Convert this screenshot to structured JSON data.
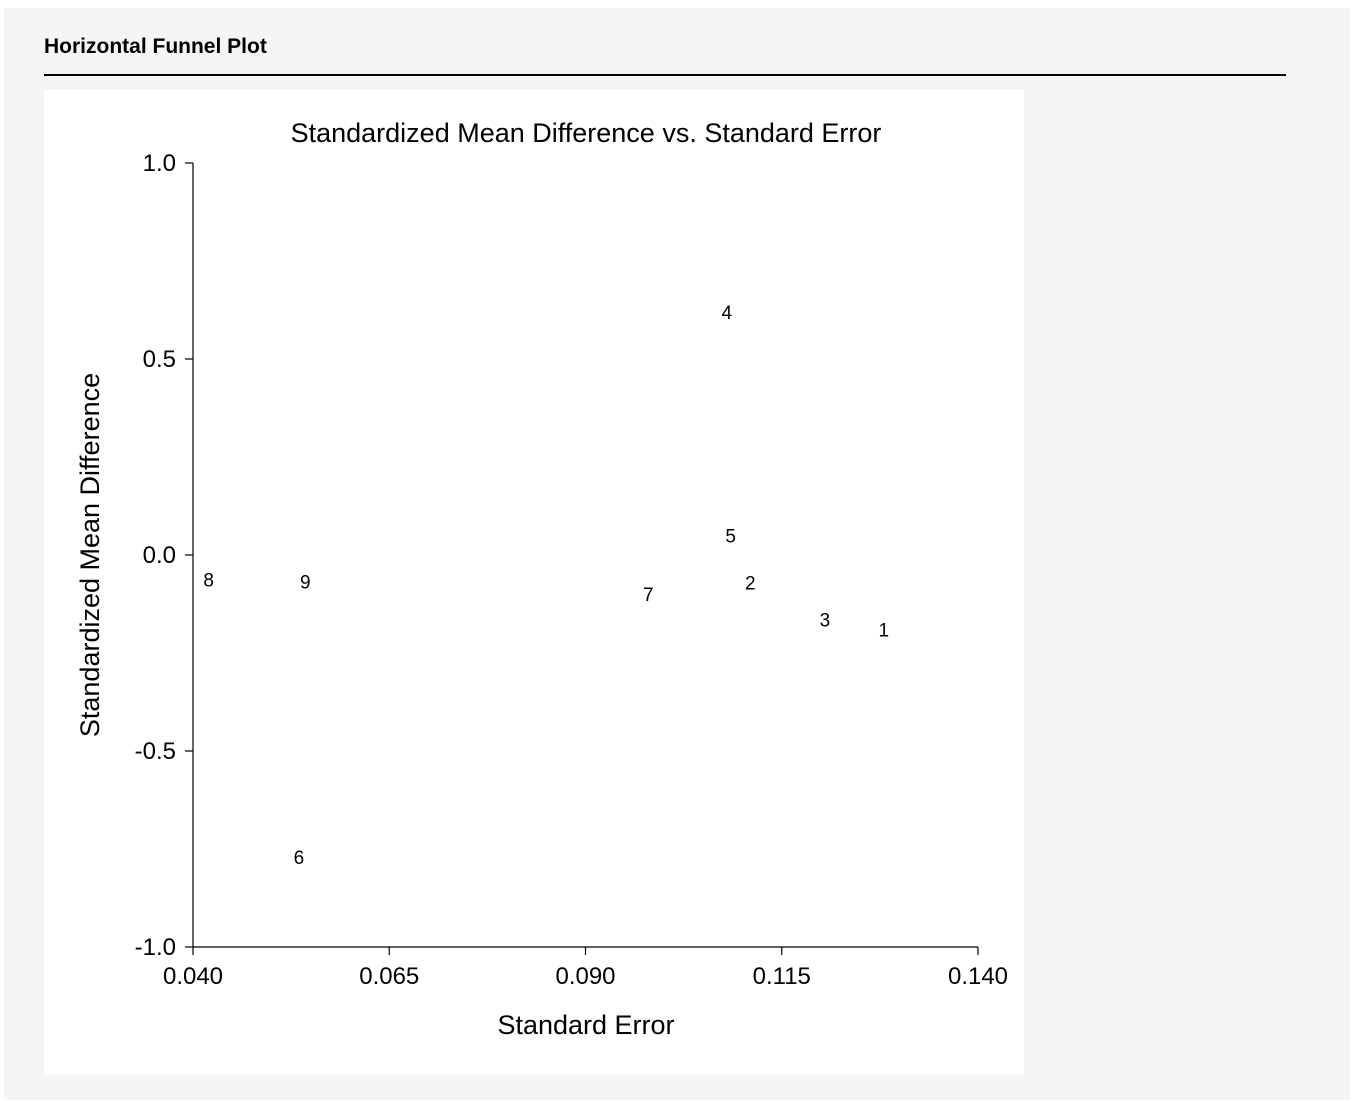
{
  "header": {
    "title": "Horizontal Funnel Plot"
  },
  "chart_data": {
    "type": "scatter",
    "title": "Standardized Mean Difference vs. Standard Error",
    "xlabel": "Standard Error",
    "ylabel": "Standardized Mean Difference",
    "xlim": [
      0.04,
      0.14
    ],
    "ylim": [
      -1.0,
      1.0
    ],
    "xticks": [
      "0.040",
      "0.065",
      "0.090",
      "0.115",
      "0.140"
    ],
    "yticks": [
      "1.0",
      "0.5",
      "0.0",
      "-0.5",
      "-1.0"
    ],
    "marker": "label",
    "points": [
      {
        "label": "1",
        "x": 0.128,
        "y": -0.19
      },
      {
        "label": "2",
        "x": 0.111,
        "y": -0.07
      },
      {
        "label": "3",
        "x": 0.1205,
        "y": -0.165
      },
      {
        "label": "4",
        "x": 0.108,
        "y": 0.62
      },
      {
        "label": "5",
        "x": 0.1085,
        "y": 0.05
      },
      {
        "label": "6",
        "x": 0.0535,
        "y": -0.77
      },
      {
        "label": "7",
        "x": 0.098,
        "y": -0.1
      },
      {
        "label": "8",
        "x": 0.042,
        "y": -0.062
      },
      {
        "label": "9",
        "x": 0.0543,
        "y": -0.068
      }
    ]
  }
}
